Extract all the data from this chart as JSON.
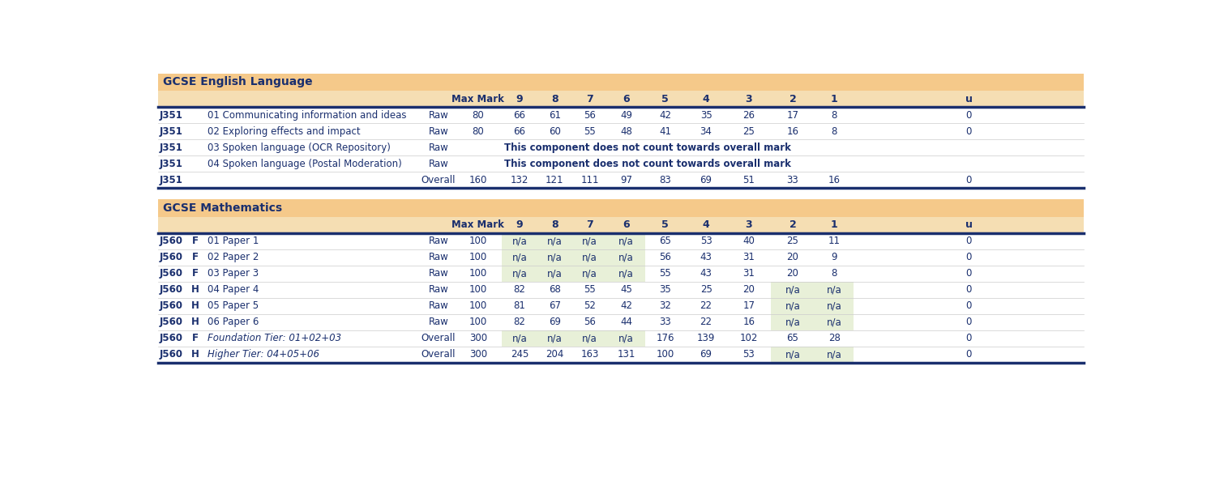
{
  "fig_width": 14.94,
  "fig_height": 5.94,
  "bg_color": "#ffffff",
  "header_bg": "#f5c98a",
  "subheader_bg": "#f5deb3",
  "na_bg_light": "#e8f0d8",
  "dark_blue": "#1a2f6e",
  "border_color": "#1a2f6e",
  "section1_title": "GCSE English Language",
  "section2_title": "GCSE Mathematics",
  "english_rows": [
    {
      "col1": "J351",
      "col2": "",
      "col3": "01 Communicating information and ideas",
      "col4": "Raw",
      "max": "80",
      "g9": "66",
      "g8": "61",
      "g7": "56",
      "g6": "49",
      "g5": "42",
      "g4": "35",
      "g3": "26",
      "g2": "17",
      "g1": "8",
      "u": "0",
      "span_msg": ""
    },
    {
      "col1": "J351",
      "col2": "",
      "col3": "02 Exploring effects and impact",
      "col4": "Raw",
      "max": "80",
      "g9": "66",
      "g8": "60",
      "g7": "55",
      "g6": "48",
      "g5": "41",
      "g4": "34",
      "g3": "25",
      "g2": "16",
      "g1": "8",
      "u": "0",
      "span_msg": ""
    },
    {
      "col1": "J351",
      "col2": "",
      "col3": "03 Spoken language (OCR Repository)",
      "col4": "Raw",
      "max": "",
      "g9": "",
      "g8": "",
      "g7": "",
      "g6": "",
      "g5": "",
      "g4": "",
      "g3": "",
      "g2": "",
      "g1": "",
      "u": "",
      "span_msg": "This component does not count towards overall mark"
    },
    {
      "col1": "J351",
      "col2": "",
      "col3": "04 Spoken language (Postal Moderation)",
      "col4": "Raw",
      "max": "",
      "g9": "",
      "g8": "",
      "g7": "",
      "g6": "",
      "g5": "",
      "g4": "",
      "g3": "",
      "g2": "",
      "g1": "",
      "u": "",
      "span_msg": "This component does not count towards overall mark"
    },
    {
      "col1": "J351",
      "col2": "",
      "col3": "",
      "col4": "Overall",
      "max": "160",
      "g9": "132",
      "g8": "121",
      "g7": "111",
      "g6": "97",
      "g5": "83",
      "g4": "69",
      "g3": "51",
      "g2": "33",
      "g1": "16",
      "u": "0",
      "span_msg": ""
    }
  ],
  "math_rows": [
    {
      "col1": "J560",
      "col2": "F",
      "col3": "01 Paper 1",
      "col4": "Raw",
      "max": "100",
      "g9": "n/a",
      "g8": "n/a",
      "g7": "n/a",
      "g6": "n/a",
      "g5": "65",
      "g4": "53",
      "g3": "40",
      "g2": "25",
      "g1": "11",
      "u": "0",
      "na_low": false,
      "na_high": true,
      "italic": false
    },
    {
      "col1": "J560",
      "col2": "F",
      "col3": "02 Paper 2",
      "col4": "Raw",
      "max": "100",
      "g9": "n/a",
      "g8": "n/a",
      "g7": "n/a",
      "g6": "n/a",
      "g5": "56",
      "g4": "43",
      "g3": "31",
      "g2": "20",
      "g1": "9",
      "u": "0",
      "na_low": false,
      "na_high": true,
      "italic": false
    },
    {
      "col1": "J560",
      "col2": "F",
      "col3": "03 Paper 3",
      "col4": "Raw",
      "max": "100",
      "g9": "n/a",
      "g8": "n/a",
      "g7": "n/a",
      "g6": "n/a",
      "g5": "55",
      "g4": "43",
      "g3": "31",
      "g2": "20",
      "g1": "8",
      "u": "0",
      "na_low": false,
      "na_high": true,
      "italic": false
    },
    {
      "col1": "J560",
      "col2": "H",
      "col3": "04 Paper 4",
      "col4": "Raw",
      "max": "100",
      "g9": "82",
      "g8": "68",
      "g7": "55",
      "g6": "45",
      "g5": "35",
      "g4": "25",
      "g3": "20",
      "g2": "n/a",
      "g1": "n/a",
      "u": "0",
      "na_low": true,
      "na_high": false,
      "italic": false
    },
    {
      "col1": "J560",
      "col2": "H",
      "col3": "05 Paper 5",
      "col4": "Raw",
      "max": "100",
      "g9": "81",
      "g8": "67",
      "g7": "52",
      "g6": "42",
      "g5": "32",
      "g4": "22",
      "g3": "17",
      "g2": "n/a",
      "g1": "n/a",
      "u": "0",
      "na_low": true,
      "na_high": false,
      "italic": false
    },
    {
      "col1": "J560",
      "col2": "H",
      "col3": "06 Paper 6",
      "col4": "Raw",
      "max": "100",
      "g9": "82",
      "g8": "69",
      "g7": "56",
      "g6": "44",
      "g5": "33",
      "g4": "22",
      "g3": "16",
      "g2": "n/a",
      "g1": "n/a",
      "u": "0",
      "na_low": true,
      "na_high": false,
      "italic": false
    },
    {
      "col1": "J560",
      "col2": "F",
      "col3": "Foundation Tier: 01+02+03",
      "col4": "Overall",
      "max": "300",
      "g9": "n/a",
      "g8": "n/a",
      "g7": "n/a",
      "g6": "n/a",
      "g5": "176",
      "g4": "139",
      "g3": "102",
      "g2": "65",
      "g1": "28",
      "u": "0",
      "na_low": false,
      "na_high": true,
      "italic": true
    },
    {
      "col1": "J560",
      "col2": "H",
      "col3": "Higher Tier: 04+05+06",
      "col4": "Overall",
      "max": "300",
      "g9": "245",
      "g8": "204",
      "g7": "163",
      "g6": "131",
      "g5": "100",
      "g4": "69",
      "g3": "53",
      "g2": "n/a",
      "g1": "n/a",
      "u": "0",
      "na_low": true,
      "na_high": false,
      "italic": true
    }
  ]
}
